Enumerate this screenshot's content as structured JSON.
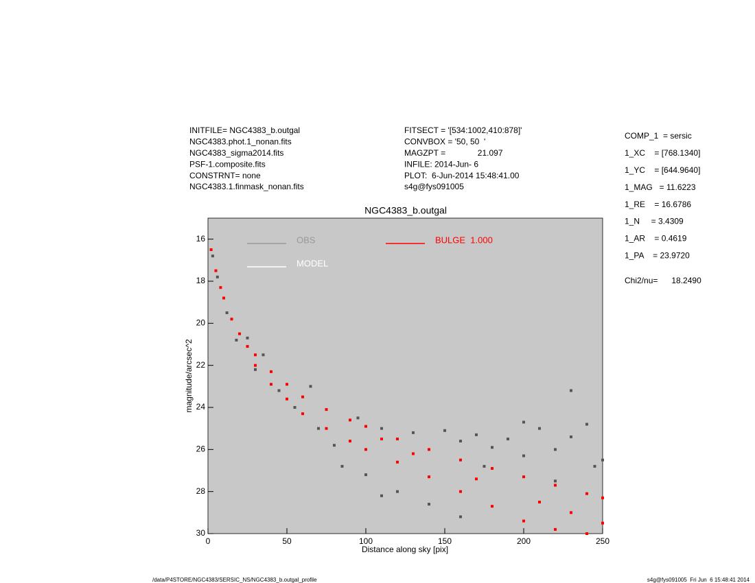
{
  "header": {
    "left": [
      "INITFILE= NGC4383_b.outgal",
      "NGC4383.phot.1_nonan.fits",
      "NGC4383_sigma2014.fits",
      "PSF-1.composite.fits",
      "CONSTRNT= none",
      "NGC4383.1.finmask_nonan.fits"
    ],
    "middle": [
      "FITSECT = '[534:1002,410:878]'",
      "CONVBOX = '50, 50  '",
      "MAGZPT =              21.097",
      "INFILE: 2014-Jun- 6",
      "PLOT:  6-Jun-2014 15:48:41.00",
      "s4g@fys091005"
    ],
    "right": [
      "COMP_1  = sersic",
      "1_XC    = [768.1340]",
      "1_YC    = [644.9640]",
      "1_MAG   = 11.6223",
      "1_RE    = 16.6786",
      "1_N     = 3.4309",
      "1_AR    = 0.4619",
      "1_PA    = 23.9720",
      "Chi2/nu=      18.2490"
    ]
  },
  "chart_data": {
    "type": "scatter",
    "title": "NGC4383_b.outgal",
    "x_label": "Distance along sky [pix]",
    "y_label": "magnitude/arcsec^2",
    "xlim": [
      0,
      250
    ],
    "xticks": [
      0,
      50,
      100,
      150,
      200,
      250
    ],
    "ylim": [
      30,
      15
    ],
    "yticks": [
      16,
      18,
      20,
      22,
      24,
      26,
      28,
      30
    ],
    "background": "#c8c8c8",
    "series": [
      {
        "name": "OBS",
        "color": "#555555",
        "legend_color": "#999999",
        "x": [
          3,
          6,
          12,
          18,
          25,
          30,
          35,
          45,
          55,
          65,
          70,
          80,
          85,
          95,
          100,
          110,
          120,
          130,
          140,
          150,
          160,
          170,
          180,
          190,
          200,
          210,
          220,
          230,
          230,
          240,
          245,
          250,
          200,
          160,
          175,
          220,
          110
        ],
        "values": [
          16.8,
          17.8,
          19.5,
          20.8,
          20.7,
          22.2,
          21.5,
          23.2,
          24.0,
          23.0,
          25.0,
          25.8,
          26.8,
          24.5,
          27.2,
          25.0,
          28.0,
          25.2,
          28.6,
          25.1,
          25.6,
          25.3,
          25.9,
          25.5,
          26.3,
          25.0,
          26.0,
          25.4,
          23.2,
          24.8,
          26.8,
          26.5,
          24.7,
          29.2,
          26.8,
          27.5,
          28.2
        ]
      },
      {
        "name": "MODEL",
        "color": "#ffffff",
        "legend_color": "#ffffff",
        "x": [],
        "values": []
      },
      {
        "name": "BULGE  1.000",
        "color": "#ff0000",
        "legend_color": "#ff0000",
        "x": [
          2,
          5,
          8,
          10,
          15,
          20,
          25,
          30,
          30,
          40,
          40,
          50,
          50,
          60,
          60,
          75,
          75,
          90,
          90,
          100,
          100,
          120,
          120,
          140,
          140,
          160,
          160,
          180,
          180,
          200,
          200,
          220,
          220,
          240,
          240,
          250,
          250,
          170,
          130,
          110,
          210,
          230
        ],
        "values": [
          16.5,
          17.5,
          18.3,
          18.8,
          19.8,
          20.5,
          21.1,
          21.5,
          22.0,
          22.3,
          22.9,
          22.9,
          23.6,
          23.5,
          24.3,
          24.1,
          25.0,
          24.6,
          25.6,
          24.9,
          26.0,
          25.5,
          26.6,
          26.0,
          27.3,
          26.5,
          28.0,
          26.9,
          28.7,
          27.3,
          29.4,
          27.7,
          29.8,
          28.1,
          30.0,
          28.3,
          29.5,
          27.4,
          26.2,
          25.5,
          28.5,
          29.0
        ]
      }
    ]
  },
  "footer": {
    "left": "/data/P4STORE/NGC4383/SERSIC_NS/NGC4383_b.outgal_profile",
    "right": "s4g@fys091005  Fri Jun  6 15:48:41 2014"
  }
}
